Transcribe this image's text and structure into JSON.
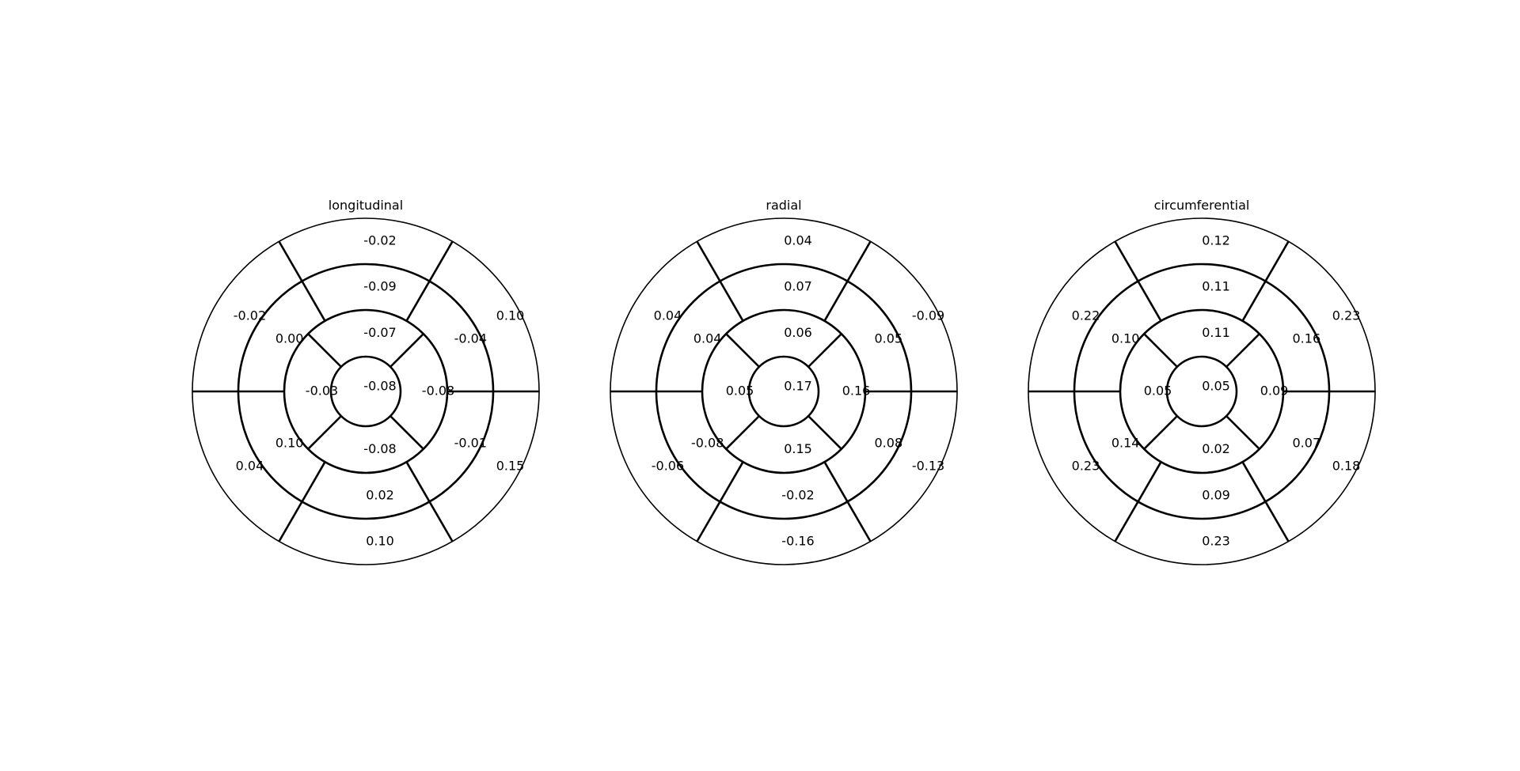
{
  "chart_data": [
    {
      "type": "bullseye",
      "title": "longitudinal",
      "segments": {
        "basal": [
          -0.02,
          0.1,
          0.15,
          0.1,
          0.04,
          -0.02
        ],
        "mid": [
          -0.09,
          -0.04,
          -0.01,
          0.02,
          0.1,
          0.0
        ],
        "apical": [
          -0.07,
          -0.08,
          -0.08,
          -0.03
        ],
        "apex": [
          -0.08
        ]
      }
    },
    {
      "type": "bullseye",
      "title": "radial",
      "segments": {
        "basal": [
          0.04,
          -0.09,
          -0.13,
          -0.16,
          -0.06,
          0.04
        ],
        "mid": [
          0.07,
          0.05,
          0.08,
          -0.02,
          -0.08,
          0.04
        ],
        "apical": [
          0.06,
          0.16,
          0.15,
          0.05
        ],
        "apex": [
          0.17
        ]
      }
    },
    {
      "type": "bullseye",
      "title": "circumferential",
      "segments": {
        "basal": [
          0.12,
          0.23,
          0.18,
          0.23,
          0.23,
          0.22
        ],
        "mid": [
          0.11,
          0.16,
          0.07,
          0.09,
          0.14,
          0.1
        ],
        "apical": [
          0.11,
          0.09,
          0.02,
          0.05
        ],
        "apex": [
          0.05
        ]
      }
    }
  ]
}
